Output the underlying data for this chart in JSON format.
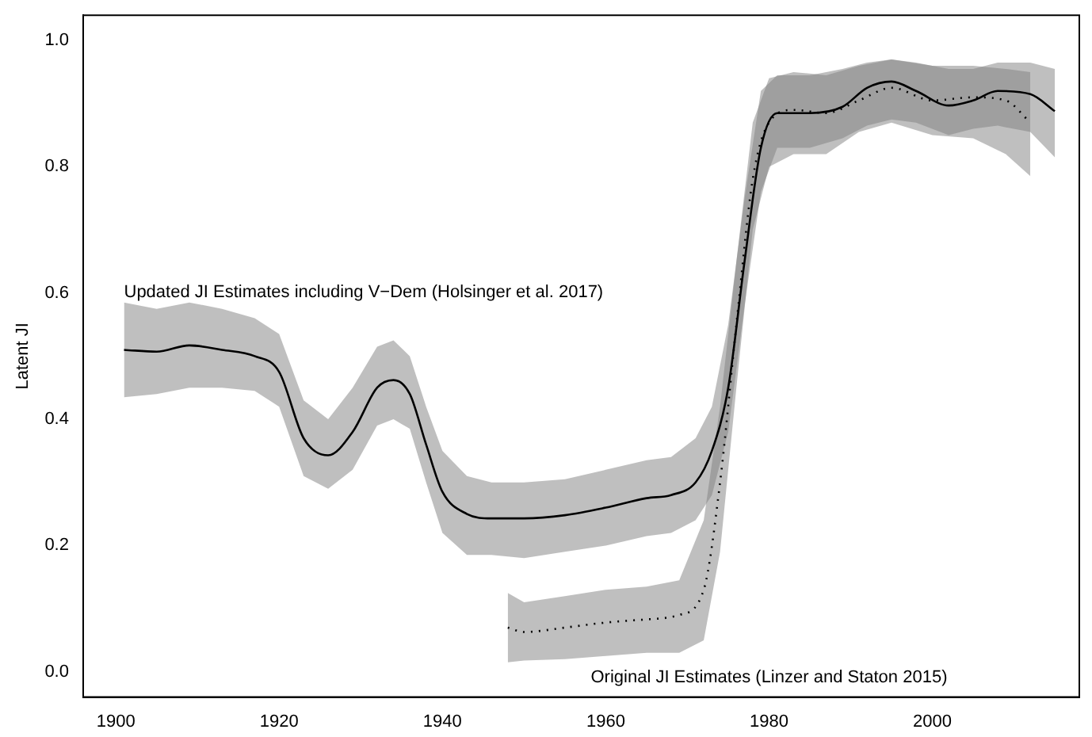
{
  "chart_data": {
    "type": "line",
    "ylabel": "Latent JI",
    "legend": false,
    "grid": false,
    "marker": "none",
    "xlim": [
      1896,
      2018
    ],
    "xticks": [
      1900,
      1920,
      1940,
      1960,
      1980,
      2000
    ],
    "ylim": [
      -0.04,
      1.04
    ],
    "yticks": [
      {
        "value": 0,
        "label": "0.0"
      },
      0.2,
      0.4,
      0.6,
      0.8,
      {
        "value": 1,
        "label": "1.0"
      }
    ],
    "series": [
      {
        "name": "Updated JI Estimates including V−Dem (Holsinger et al. 2017)",
        "color": "#000000",
        "line_style": "solid",
        "x": [
          1901,
          1905,
          1909,
          1913,
          1917,
          1920,
          1923,
          1926,
          1929,
          1932,
          1934,
          1936,
          1938,
          1940,
          1943,
          1946,
          1950,
          1955,
          1960,
          1965,
          1968,
          1971,
          1973,
          1975,
          1977,
          1979,
          1981,
          1985,
          1989,
          1992,
          1995,
          1998,
          2002,
          2005,
          2008,
          2012,
          2015
        ],
        "values": [
          0.51,
          0.507,
          0.517,
          0.51,
          0.5,
          0.475,
          0.37,
          0.343,
          0.38,
          0.45,
          0.462,
          0.44,
          0.36,
          0.285,
          0.25,
          0.243,
          0.243,
          0.248,
          0.26,
          0.275,
          0.28,
          0.3,
          0.35,
          0.45,
          0.65,
          0.83,
          0.885,
          0.885,
          0.895,
          0.925,
          0.935,
          0.92,
          0.897,
          0.905,
          0.92,
          0.915,
          0.888
        ],
        "lower": [
          0.435,
          0.44,
          0.45,
          0.45,
          0.445,
          0.42,
          0.31,
          0.29,
          0.32,
          0.39,
          0.4,
          0.385,
          0.3,
          0.22,
          0.185,
          0.185,
          0.18,
          0.19,
          0.2,
          0.215,
          0.22,
          0.24,
          0.28,
          0.38,
          0.58,
          0.76,
          0.83,
          0.83,
          0.845,
          0.865,
          0.875,
          0.87,
          0.85,
          0.86,
          0.865,
          0.855,
          0.815
        ],
        "upper": [
          0.585,
          0.575,
          0.585,
          0.575,
          0.56,
          0.535,
          0.43,
          0.4,
          0.45,
          0.515,
          0.525,
          0.5,
          0.42,
          0.35,
          0.31,
          0.3,
          0.3,
          0.305,
          0.32,
          0.335,
          0.34,
          0.37,
          0.42,
          0.55,
          0.75,
          0.92,
          0.945,
          0.945,
          0.955,
          0.965,
          0.97,
          0.965,
          0.955,
          0.955,
          0.965,
          0.965,
          0.955
        ]
      },
      {
        "name": "Original JI Estimates (Linzer and Staton 2015)",
        "color": "#000000",
        "line_style": "dotted",
        "x": [
          1948,
          1950,
          1955,
          1960,
          1965,
          1969,
          1972,
          1974,
          1976,
          1978,
          1980,
          1983,
          1987,
          1991,
          1995,
          2000,
          2005,
          2009,
          2012
        ],
        "values": [
          0.07,
          0.063,
          0.07,
          0.078,
          0.083,
          0.09,
          0.13,
          0.3,
          0.55,
          0.78,
          0.87,
          0.89,
          0.885,
          0.905,
          0.925,
          0.905,
          0.91,
          0.905,
          0.87
        ],
        "lower": [
          0.015,
          0.018,
          0.02,
          0.025,
          0.03,
          0.03,
          0.05,
          0.19,
          0.45,
          0.7,
          0.8,
          0.82,
          0.82,
          0.855,
          0.87,
          0.85,
          0.845,
          0.82,
          0.785
        ],
        "upper": [
          0.125,
          0.11,
          0.12,
          0.13,
          0.135,
          0.145,
          0.24,
          0.42,
          0.65,
          0.87,
          0.94,
          0.95,
          0.945,
          0.96,
          0.97,
          0.96,
          0.96,
          0.955,
          0.95
        ]
      }
    ]
  }
}
